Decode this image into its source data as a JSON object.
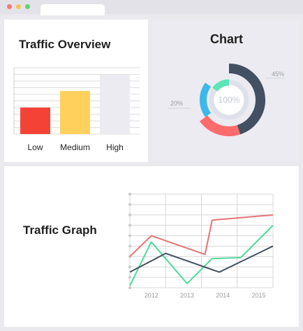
{
  "colors": {
    "red": "#f44336",
    "yellow": "#ffd15c",
    "light": "#ebebf1",
    "dark": "#435061",
    "green": "#4cdb97",
    "blue": "#3cb8ea",
    "salmon": "#ff6b6b",
    "mint": "#5ce5b5"
  },
  "window": {
    "dots": [
      "#f47a6f",
      "#f9c25a",
      "#6ad16c"
    ]
  },
  "overview": {
    "title": "Traffic Overview",
    "chart_data": {
      "type": "bar",
      "categories": [
        "Low",
        "Medium",
        "High"
      ],
      "values": [
        40,
        65,
        90
      ],
      "ylim": [
        0,
        100
      ],
      "grid": true
    }
  },
  "donut": {
    "title": "Chart",
    "center_label": "100%",
    "chart_data": {
      "type": "pie",
      "labels": [
        "45%",
        "20%"
      ],
      "rings": [
        {
          "ring": "outer",
          "color": "#435061",
          "start_deg": 0,
          "sweep_deg": 162
        },
        {
          "ring": "outer",
          "color": "#ff6b6b",
          "start_deg": 162,
          "sweep_deg": 72
        },
        {
          "ring": "middle",
          "color": "#3cb8ea",
          "start_deg": 234,
          "sweep_deg": 72
        },
        {
          "ring": "inner",
          "color": "#5ce5b5",
          "start_deg": 306,
          "sweep_deg": 54
        }
      ]
    }
  },
  "graph": {
    "title": "Traffic Graph",
    "chart_data": {
      "type": "line",
      "x": [
        "2012",
        "2013",
        "2014",
        "2015"
      ],
      "ylim": [
        0,
        9
      ],
      "grid": true,
      "series": [
        {
          "color": "#e57373",
          "points": [
            [
              0,
              3
            ],
            [
              0.6,
              5
            ],
            [
              2.1,
              3.2
            ],
            [
              2.3,
              6.5
            ],
            [
              4,
              7
            ]
          ]
        },
        {
          "color": "#4cdb97",
          "points": [
            [
              0,
              0.2
            ],
            [
              0.6,
              4.4
            ],
            [
              1.6,
              0.4
            ],
            [
              2.3,
              2.8
            ],
            [
              3.1,
              2.9
            ],
            [
              4,
              6
            ]
          ]
        },
        {
          "color": "#435061",
          "points": [
            [
              0,
              1.5
            ],
            [
              1,
              3.3
            ],
            [
              2.5,
              1.5
            ],
            [
              4,
              4
            ]
          ]
        }
      ]
    }
  }
}
